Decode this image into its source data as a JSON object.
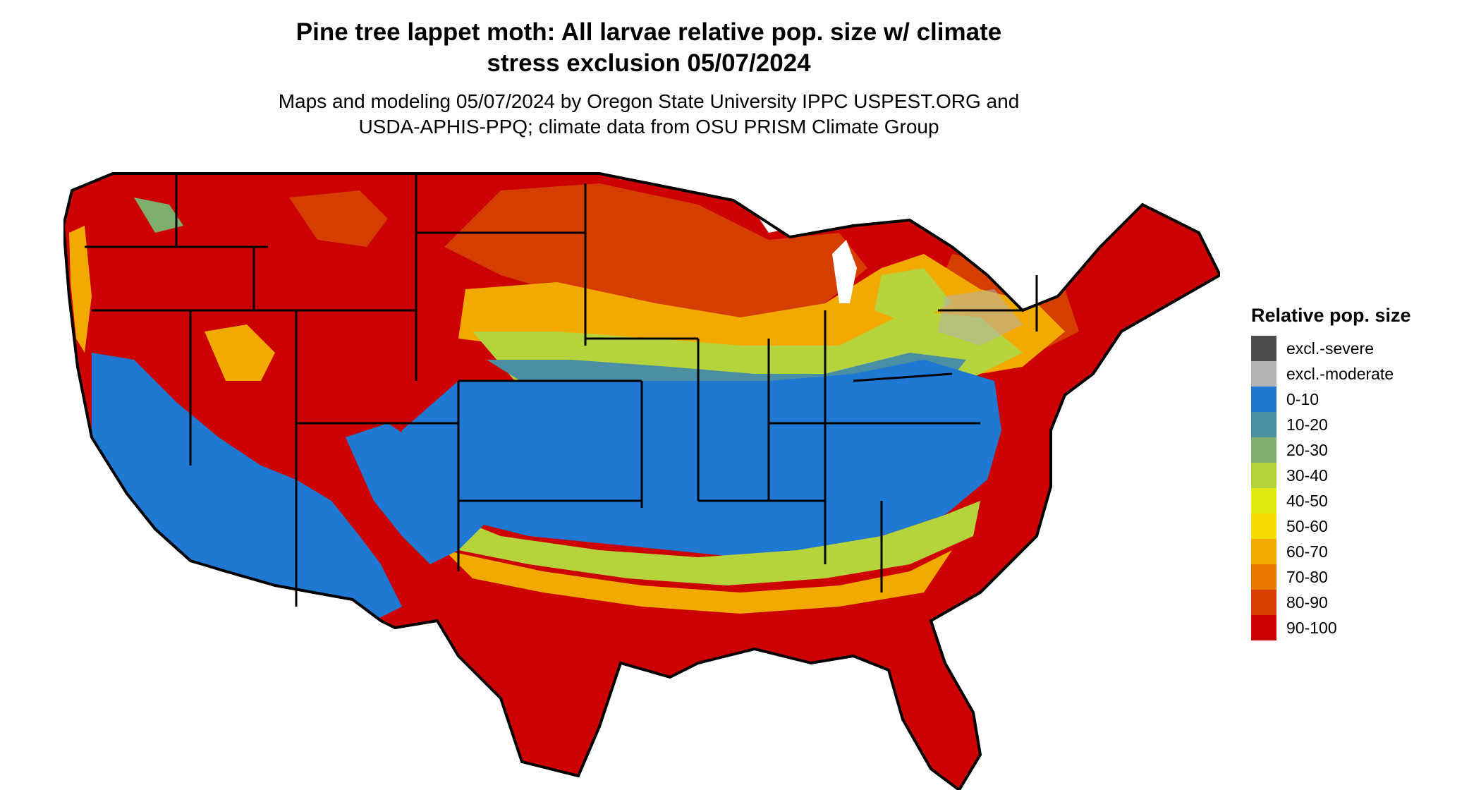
{
  "title": {
    "line1": "Pine tree lappet moth: All larvae relative pop. size w/ climate",
    "line2": "stress exclusion 05/07/2024"
  },
  "subtitle": {
    "line1": "Maps and modeling 05/07/2024 by Oregon State University IPPC USPEST.ORG and",
    "line2": "USDA-APHIS-PPQ; climate data from OSU PRISM Climate Group"
  },
  "legend": {
    "title": "Relative pop. size",
    "items": [
      {
        "label": "excl.-severe",
        "color": "#4d4d4d"
      },
      {
        "label": "excl.-moderate",
        "color": "#b3b3b3"
      },
      {
        "label": "0-10",
        "color": "#1f78d1"
      },
      {
        "label": "10-20",
        "color": "#4a8fa3"
      },
      {
        "label": "20-30",
        "color": "#7fae6e"
      },
      {
        "label": "30-40",
        "color": "#b5d33c"
      },
      {
        "label": "40-50",
        "color": "#e2ea12"
      },
      {
        "label": "50-60",
        "color": "#f5dc00"
      },
      {
        "label": "60-70",
        "color": "#f2a900"
      },
      {
        "label": "70-80",
        "color": "#e87800"
      },
      {
        "label": "80-90",
        "color": "#d63e00"
      },
      {
        "label": "90-100",
        "color": "#cc0000"
      }
    ]
  }
}
